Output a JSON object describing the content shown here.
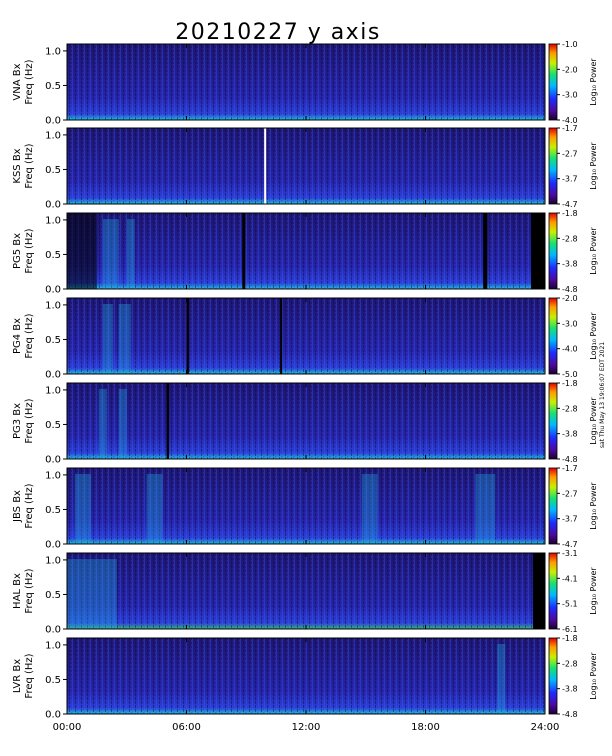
{
  "figure": {
    "title": "20210227 y axis",
    "side_note": "sat Thu May 13 19:06:07 EDT 2021",
    "x_ticks": [
      "00:00",
      "06:00",
      "12:00",
      "18:00",
      "24:00"
    ],
    "y_ticks": [
      "0.0",
      "0.5",
      "1.0"
    ],
    "colorbar_label": "Log₁₀ Power"
  },
  "chart_data": [
    {
      "type": "heatmap",
      "station": "VNA Bx",
      "ylabel": "Freq (Hz)",
      "xlim": [
        0,
        24
      ],
      "ylim": [
        0,
        1.1
      ],
      "colorbar": {
        "label": "Log₁₀ Power",
        "ticks": [
          "-1.0",
          "-2.0",
          "-3.0",
          "-4.0"
        ],
        "range": [
          -4.0,
          -1.0
        ]
      }
    },
    {
      "type": "heatmap",
      "station": "KSS Bx",
      "ylabel": "Freq (Hz)",
      "xlim": [
        0,
        24
      ],
      "ylim": [
        0,
        1.1
      ],
      "colorbar": {
        "label": "Log₁₀ Power",
        "ticks": [
          "-1.7",
          "-2.7",
          "-3.7",
          "-4.7"
        ],
        "range": [
          -4.7,
          -1.7
        ]
      }
    },
    {
      "type": "heatmap",
      "station": "PG5 Bx",
      "ylabel": "Freq (Hz)",
      "xlim": [
        0,
        24
      ],
      "ylim": [
        0,
        1.1
      ],
      "colorbar": {
        "label": "Log₁₀ Power",
        "ticks": [
          "-1.8",
          "-2.8",
          "-3.8",
          "-4.8"
        ],
        "range": [
          -4.8,
          -1.8
        ]
      }
    },
    {
      "type": "heatmap",
      "station": "PG4 Bx",
      "ylabel": "Freq (Hz)",
      "xlim": [
        0,
        24
      ],
      "ylim": [
        0,
        1.1
      ],
      "colorbar": {
        "label": "Log₁₀ Power",
        "ticks": [
          "-2.0",
          "-3.0",
          "-4.0",
          "-5.0"
        ],
        "range": [
          -5.0,
          -2.0
        ]
      }
    },
    {
      "type": "heatmap",
      "station": "PG3 Bx",
      "ylabel": "Freq (Hz)",
      "xlim": [
        0,
        24
      ],
      "ylim": [
        0,
        1.1
      ],
      "colorbar": {
        "label": "Log₁₀ Power",
        "ticks": [
          "-1.8",
          "-2.8",
          "-3.8",
          "-4.8"
        ],
        "range": [
          -4.8,
          -1.8
        ]
      }
    },
    {
      "type": "heatmap",
      "station": "JBS Bx",
      "ylabel": "Freq (Hz)",
      "xlim": [
        0,
        24
      ],
      "ylim": [
        0,
        1.1
      ],
      "colorbar": {
        "label": "Log₁₀ Power",
        "ticks": [
          "-1.7",
          "-2.7",
          "-3.7",
          "-4.7"
        ],
        "range": [
          -4.7,
          -1.7
        ]
      }
    },
    {
      "type": "heatmap",
      "station": "HAL Bx",
      "ylabel": "Freq (Hz)",
      "xlim": [
        0,
        24
      ],
      "ylim": [
        0,
        1.1
      ],
      "colorbar": {
        "label": "Log₁₀ Power",
        "ticks": [
          "-3.1",
          "-4.1",
          "-5.1",
          "-6.1"
        ],
        "range": [
          -6.1,
          -3.1
        ]
      }
    },
    {
      "type": "heatmap",
      "station": "LVR Bx",
      "ylabel": "Freq (Hz)",
      "xlim": [
        0,
        24
      ],
      "ylim": [
        0,
        1.1
      ],
      "colorbar": {
        "label": "Log₁₀ Power",
        "ticks": [
          "-1.8",
          "-2.8",
          "-3.8",
          "-4.8"
        ],
        "range": [
          -4.8,
          -1.8
        ]
      }
    }
  ]
}
